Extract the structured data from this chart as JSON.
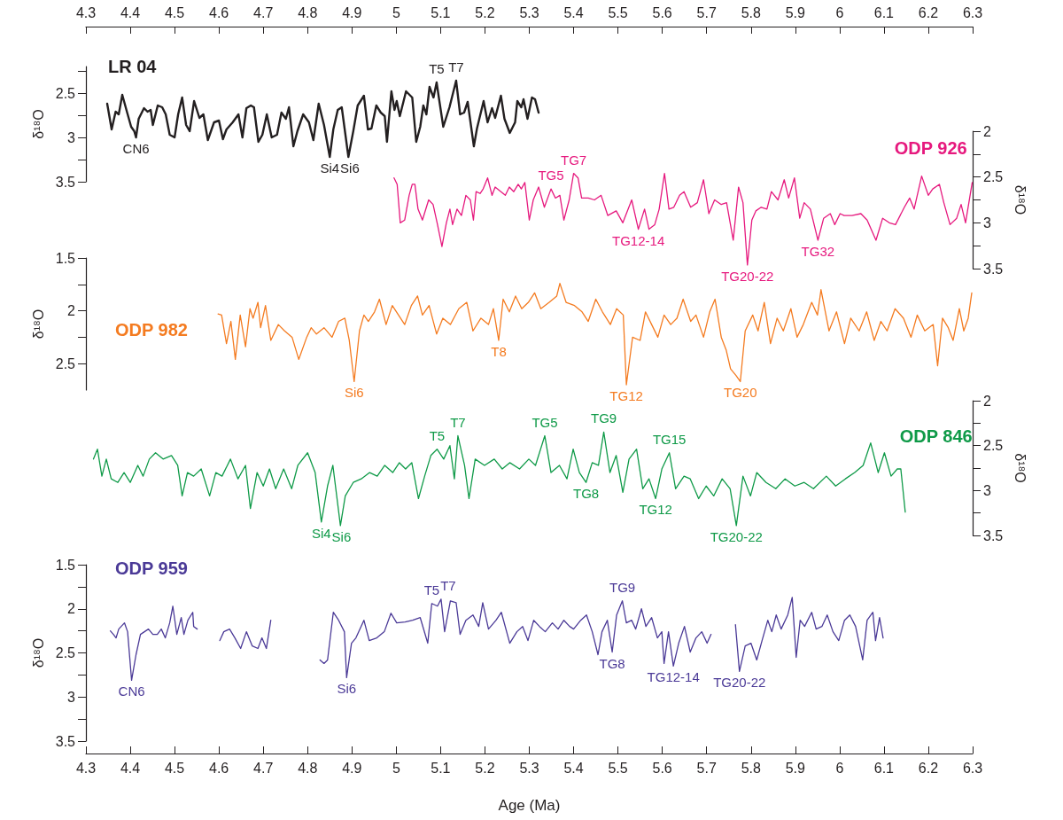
{
  "chart_data": [
    {
      "type": "line",
      "title": "LR 04",
      "ylabel": "δ¹⁸O",
      "xlim": [
        4.3,
        6.3
      ],
      "xticks": [
        4.3,
        4.4,
        4.5,
        4.6,
        4.7,
        4.8,
        4.9,
        5,
        5.1,
        5.2,
        5.3,
        5.4,
        5.5,
        5.6,
        5.7,
        5.8,
        5.9,
        6,
        6.1,
        6.2,
        6.3
      ],
      "ylim": [
        3.5,
        2.2
      ],
      "yticks": [
        {
          "value": 2.25,
          "label": null
        },
        2.5,
        {
          "value": 2.75,
          "label": null
        },
        3,
        {
          "value": 3.25,
          "label": null
        },
        3.5
      ],
      "series": [
        {
          "color": "#231f20",
          "x": [
            4.348,
            4.358,
            4.367,
            4.374,
            4.382,
            4.393,
            4.402,
            4.409,
            4.413,
            4.419,
            4.431,
            4.439,
            4.446,
            4.451,
            4.462,
            4.472,
            4.48,
            4.489,
            4.5,
            4.508,
            4.517,
            4.526,
            4.534,
            4.544,
            4.556,
            4.565,
            4.575,
            4.589,
            4.6,
            4.609,
            4.617,
            4.631,
            4.644,
            4.653,
            4.662,
            4.672,
            4.679,
            4.689,
            4.698,
            4.708,
            4.719,
            4.731,
            4.741,
            4.751,
            4.758,
            4.768,
            4.777,
            4.79,
            4.803,
            4.813,
            4.825,
            4.837,
            4.85,
            4.858,
            4.868,
            4.877,
            4.892,
            4.903,
            4.913,
            4.927,
            4.936,
            4.944,
            4.955,
            4.965,
            4.974,
            4.979,
            4.989,
            4.996,
            5.001,
            5.008,
            5.022,
            5.036,
            5.045,
            5.054,
            5.061,
            5.068,
            5.075,
            5.084,
            5.091,
            5.096,
            5.106,
            5.12,
            5.135,
            5.144,
            5.153,
            5.161,
            5.175,
            5.182,
            5.197,
            5.206,
            5.216,
            5.223,
            5.236,
            5.244,
            5.256,
            5.268,
            5.273,
            5.282,
            5.287,
            5.296,
            5.306,
            5.313,
            5.321
          ],
          "values": [
            2.62,
            2.91,
            2.71,
            2.74,
            2.52,
            2.72,
            2.88,
            2.93,
            3.0,
            2.79,
            2.67,
            2.71,
            2.69,
            2.86,
            2.64,
            2.66,
            2.74,
            2.97,
            3.0,
            2.74,
            2.55,
            2.86,
            2.93,
            2.59,
            2.78,
            2.74,
            3.03,
            2.83,
            2.81,
            3.02,
            2.91,
            2.83,
            2.74,
            3.0,
            2.67,
            2.64,
            2.66,
            3.05,
            2.97,
            2.74,
            3.0,
            2.97,
            2.72,
            2.79,
            2.66,
            3.1,
            2.93,
            2.74,
            2.83,
            3.03,
            2.62,
            2.86,
            3.22,
            2.91,
            2.69,
            2.66,
            3.22,
            2.93,
            2.64,
            2.53,
            2.91,
            2.9,
            2.64,
            2.72,
            2.76,
            3.05,
            2.48,
            2.69,
            2.59,
            2.76,
            2.48,
            2.55,
            3.05,
            2.88,
            2.64,
            2.74,
            2.43,
            2.55,
            2.38,
            2.55,
            2.88,
            2.66,
            2.36,
            2.74,
            2.72,
            2.6,
            3.1,
            2.9,
            2.59,
            2.83,
            2.67,
            2.78,
            2.53,
            2.79,
            2.95,
            2.83,
            2.59,
            2.66,
            2.57,
            2.79,
            2.55,
            2.57,
            2.72
          ]
        }
      ],
      "annotations": [
        {
          "text": "CN6",
          "x": 4.413,
          "y": 3.0
        },
        {
          "text": "Si4",
          "x": 4.85,
          "y": 3.22
        },
        {
          "text": "Si6",
          "x": 4.892,
          "y": 3.22
        },
        {
          "text": "T5",
          "x": 5.091,
          "y": 2.38
        },
        {
          "text": "T7",
          "x": 5.135,
          "y": 2.36
        }
      ]
    },
    {
      "type": "line",
      "title": "ODP 926",
      "ylabel": "δ¹⁸O",
      "xlim": [
        4.3,
        6.3
      ],
      "xticks": [
        4.3,
        4.4,
        4.5,
        4.6,
        4.7,
        4.8,
        4.9,
        5,
        5.1,
        5.2,
        5.3,
        5.4,
        5.5,
        5.6,
        5.7,
        5.8,
        5.9,
        6,
        6.1,
        6.2,
        6.3
      ],
      "tick_labels": "y",
      "ylim": [
        3.5,
        2
      ],
      "yticks": [
        2,
        {
          "value": 2.25,
          "label": null
        },
        2.5,
        {
          "value": 2.75,
          "label": null
        },
        3,
        {
          "value": 3.25,
          "label": null
        },
        3.5
      ],
      "series": [
        {
          "color": "#e6197e",
          "x": [
            4.995,
            5.002,
            5.009,
            5.019,
            5.029,
            5.036,
            5.042,
            5.049,
            5.059,
            5.073,
            5.083,
            5.093,
            5.103,
            5.113,
            5.121,
            5.127,
            5.137,
            5.147,
            5.157,
            5.167,
            5.174,
            5.18,
            5.189,
            5.196,
            5.206,
            5.216,
            5.223,
            5.236,
            5.246,
            5.255,
            5.265,
            5.275,
            5.282,
            5.29,
            5.3,
            5.309,
            5.321,
            5.334,
            5.349,
            5.359,
            5.369,
            5.378,
            5.39,
            5.4,
            5.41,
            5.418,
            5.433,
            5.447,
            5.462,
            5.477,
            5.496,
            5.511,
            5.531,
            5.546,
            5.56,
            5.57,
            5.583,
            5.593,
            5.605,
            5.615,
            5.626,
            5.639,
            5.649,
            5.664,
            5.679,
            5.693,
            5.705,
            5.718,
            5.733,
            5.745,
            5.76,
            5.772,
            5.782,
            5.792,
            5.802,
            5.811,
            5.823,
            5.836,
            5.846,
            5.861,
            5.875,
            5.885,
            5.898,
            5.91,
            5.92,
            5.934,
            5.951,
            5.964,
            5.979,
            5.989,
            6.001,
            6.01,
            6.028,
            6.048,
            6.062,
            6.082,
            6.097,
            6.112,
            6.126,
            6.146,
            6.158,
            6.168,
            6.185,
            6.2,
            6.21,
            6.225,
            6.235,
            6.249,
            6.264,
            6.274,
            6.284,
            6.299
          ],
          "values": [
            2.51,
            2.58,
            3.0,
            2.97,
            2.7,
            2.58,
            2.58,
            2.85,
            2.97,
            2.75,
            2.8,
            3.02,
            3.26,
            3.0,
            2.85,
            3.02,
            2.85,
            2.92,
            2.7,
            2.75,
            2.97,
            2.66,
            2.68,
            2.63,
            2.51,
            2.7,
            2.61,
            2.66,
            2.7,
            2.61,
            2.66,
            2.58,
            2.63,
            2.56,
            2.97,
            2.75,
            2.61,
            2.83,
            2.63,
            2.73,
            2.7,
            2.97,
            2.75,
            2.46,
            2.51,
            2.73,
            2.73,
            2.75,
            2.7,
            2.92,
            2.87,
            3.0,
            2.75,
            3.07,
            2.85,
            3.07,
            3.02,
            2.85,
            2.46,
            2.85,
            2.83,
            2.7,
            2.66,
            2.83,
            2.78,
            2.53,
            2.9,
            2.75,
            2.8,
            2.78,
            3.19,
            2.61,
            2.78,
            3.46,
            2.97,
            2.87,
            2.83,
            2.85,
            2.66,
            2.75,
            2.53,
            2.73,
            2.51,
            2.95,
            2.78,
            2.85,
            3.19,
            2.95,
            2.9,
            3.02,
            2.9,
            2.92,
            2.92,
            2.9,
            2.97,
            3.19,
            2.95,
            3.0,
            3.02,
            2.83,
            2.73,
            2.85,
            2.49,
            2.7,
            2.63,
            2.58,
            2.78,
            3.02,
            2.95,
            2.8,
            3.0,
            2.56
          ]
        }
      ],
      "annotations": [
        {
          "text": "TG5",
          "x": 5.349,
          "y": 2.63
        },
        {
          "text": "TG7",
          "x": 5.4,
          "y": 2.46
        },
        {
          "text": "TG12-14",
          "x": 5.546,
          "y": 3.07
        },
        {
          "text": "TG20-22",
          "x": 5.792,
          "y": 3.46
        },
        {
          "text": "TG32",
          "x": 5.951,
          "y": 3.19
        }
      ]
    },
    {
      "type": "line",
      "title": "ODP 982",
      "ylabel": "δ¹⁸O",
      "xlim": [
        4.3,
        6.3
      ],
      "xticks": [
        4.3,
        4.4,
        4.5,
        4.6,
        4.7,
        4.8,
        4.9,
        5,
        5.1,
        5.2,
        5.3,
        5.4,
        5.5,
        5.6,
        5.7,
        5.8,
        5.9,
        6,
        6.1,
        6.2,
        6.3
      ],
      "tick_labels": "y",
      "ylim": [
        2.75,
        1.5
      ],
      "yticks": [
        1.5,
        {
          "value": 1.75,
          "label": null
        },
        2,
        {
          "value": 2.25,
          "label": null
        },
        2.5
      ],
      "series": [
        {
          "color": "#f47b20",
          "x": [
            4.598,
            4.606,
            4.617,
            4.627,
            4.637,
            4.648,
            4.66,
            4.67,
            4.677,
            4.688,
            4.694,
            4.705,
            4.717,
            4.734,
            4.748,
            4.765,
            4.78,
            4.798,
            4.808,
            4.82,
            4.837,
            4.855,
            4.87,
            4.884,
            4.894,
            4.905,
            4.917,
            4.927,
            4.937,
            4.951,
            4.962,
            4.977,
            4.991,
            5.005,
            5.019,
            5.034,
            5.048,
            5.059,
            5.074,
            5.091,
            5.105,
            5.122,
            5.141,
            5.159,
            5.173,
            5.191,
            5.208,
            5.219,
            5.231,
            5.241,
            5.255,
            5.269,
            5.283,
            5.298,
            5.312,
            5.326,
            5.345,
            5.362,
            5.369,
            5.383,
            5.402,
            5.419,
            5.433,
            5.45,
            5.465,
            5.483,
            5.497,
            5.512,
            5.519,
            5.533,
            5.55,
            5.562,
            5.576,
            5.59,
            5.604,
            5.619,
            5.633,
            5.647,
            5.664,
            5.676,
            5.693,
            5.707,
            5.719,
            5.733,
            5.744,
            5.754,
            5.766,
            5.776,
            5.787,
            5.804,
            5.816,
            5.83,
            5.844,
            5.859,
            5.873,
            5.89,
            5.904,
            5.918,
            5.937,
            5.95,
            5.958,
            5.976,
            5.993,
            6.011,
            6.025,
            6.044,
            6.061,
            6.078,
            6.093,
            6.107,
            6.125,
            6.144,
            6.161,
            6.175,
            6.192,
            6.211,
            6.221,
            6.232,
            6.245,
            6.256,
            6.27,
            6.28,
            6.29,
            6.298
          ],
          "values": [
            2.03,
            2.04,
            2.31,
            2.1,
            2.46,
            2.04,
            2.34,
            1.98,
            2.07,
            1.92,
            2.16,
            1.95,
            2.28,
            2.13,
            2.19,
            2.25,
            2.46,
            2.25,
            2.16,
            2.22,
            2.16,
            2.25,
            2.1,
            2.07,
            2.28,
            2.67,
            2.19,
            2.04,
            2.1,
            2.01,
            1.89,
            2.13,
            1.95,
            2.04,
            2.13,
            1.95,
            1.86,
            2.04,
            1.95,
            2.22,
            2.07,
            2.13,
            1.98,
            1.92,
            2.19,
            2.07,
            2.13,
            1.98,
            2.28,
            1.89,
            2.01,
            1.86,
            1.98,
            1.92,
            1.83,
            1.98,
            1.92,
            1.86,
            1.74,
            1.92,
            1.95,
            2.01,
            2.1,
            1.89,
            2.01,
            2.13,
            1.98,
            2.04,
            2.7,
            2.25,
            2.28,
            2.01,
            2.13,
            2.25,
            2.04,
            2.13,
            2.07,
            1.89,
            2.1,
            2.04,
            2.25,
            2.01,
            1.89,
            2.25,
            2.37,
            2.55,
            2.61,
            2.67,
            2.19,
            2.04,
            2.19,
            1.92,
            2.31,
            2.07,
            2.19,
            1.98,
            2.25,
            2.13,
            1.92,
            2.04,
            1.8,
            2.19,
            2.01,
            2.31,
            2.07,
            2.19,
            2.01,
            2.28,
            2.1,
            2.19,
            1.98,
            2.07,
            2.25,
            2.04,
            2.19,
            2.13,
            2.52,
            2.07,
            2.16,
            2.28,
            1.98,
            2.19,
            2.07,
            1.83
          ]
        }
      ],
      "annotations": [
        {
          "text": "Si6",
          "x": 4.905,
          "y": 2.67
        },
        {
          "text": "T8",
          "x": 5.231,
          "y": 2.28
        },
        {
          "text": "TG12",
          "x": 5.519,
          "y": 2.7
        },
        {
          "text": "TG20",
          "x": 5.776,
          "y": 2.67
        }
      ]
    },
    {
      "type": "line",
      "title": "ODP 846",
      "ylabel": "δ¹⁸O",
      "xlim": [
        4.3,
        6.3
      ],
      "xticks": [
        4.3,
        4.4,
        4.5,
        4.6,
        4.7,
        4.8,
        4.9,
        5,
        5.1,
        5.2,
        5.3,
        5.4,
        5.5,
        5.6,
        5.7,
        5.8,
        5.9,
        6,
        6.1,
        6.2,
        6.3
      ],
      "tick_labels": "y",
      "ylim": [
        3.5,
        2
      ],
      "yticks": [
        2,
        {
          "value": 2.25,
          "label": null
        },
        2.5,
        {
          "value": 2.75,
          "label": null
        },
        3,
        {
          "value": 3.25,
          "label": null
        },
        3.5
      ],
      "series": [
        {
          "color": "#0f9a48",
          "x": [
            4.317,
            4.326,
            4.336,
            4.346,
            4.357,
            4.372,
            4.386,
            4.4,
            4.417,
            4.429,
            4.443,
            4.457,
            4.474,
            4.493,
            4.507,
            4.517,
            4.529,
            4.543,
            4.56,
            4.579,
            4.593,
            4.607,
            4.626,
            4.643,
            4.66,
            4.671,
            4.686,
            4.7,
            4.714,
            4.728,
            4.746,
            4.764,
            4.778,
            4.8,
            4.817,
            4.831,
            4.845,
            4.857,
            4.874,
            4.885,
            4.903,
            4.921,
            4.94,
            4.957,
            4.974,
            4.992,
            5.007,
            5.021,
            5.035,
            5.05,
            5.064,
            5.078,
            5.092,
            5.107,
            5.121,
            5.131,
            5.139,
            5.154,
            5.164,
            5.178,
            5.199,
            5.221,
            5.239,
            5.256,
            5.278,
            5.299,
            5.314,
            5.335,
            5.349,
            5.368,
            5.385,
            5.399,
            5.413,
            5.428,
            5.442,
            5.456,
            5.468,
            5.482,
            5.496,
            5.511,
            5.525,
            5.542,
            5.556,
            5.57,
            5.585,
            5.599,
            5.616,
            5.63,
            5.649,
            5.663,
            5.682,
            5.699,
            5.716,
            5.735,
            5.753,
            5.767,
            5.782,
            5.799,
            5.813,
            5.834,
            5.856,
            5.877,
            5.899,
            5.92,
            5.941,
            5.97,
            5.991,
            6.013,
            6.034,
            6.053,
            6.07,
            6.087,
            6.101,
            6.116,
            6.13,
            6.138,
            6.148
          ],
          "values": [
            2.65,
            2.54,
            2.84,
            2.65,
            2.87,
            2.91,
            2.8,
            2.91,
            2.72,
            2.84,
            2.65,
            2.58,
            2.65,
            2.61,
            2.72,
            3.06,
            2.8,
            2.84,
            2.76,
            3.06,
            2.8,
            2.84,
            2.65,
            2.87,
            2.72,
            3.2,
            2.8,
            2.95,
            2.76,
            2.98,
            2.76,
            2.98,
            2.72,
            2.58,
            2.8,
            3.35,
            2.95,
            2.72,
            3.39,
            3.06,
            2.91,
            2.87,
            2.8,
            2.84,
            2.72,
            2.8,
            2.69,
            2.76,
            2.69,
            3.09,
            2.84,
            2.61,
            2.54,
            2.65,
            2.5,
            2.87,
            2.39,
            2.72,
            3.09,
            2.65,
            2.72,
            2.65,
            2.76,
            2.69,
            2.76,
            2.65,
            2.72,
            2.39,
            2.8,
            2.72,
            2.87,
            2.54,
            2.8,
            2.91,
            2.69,
            2.72,
            2.35,
            2.8,
            2.61,
            3.02,
            2.65,
            2.54,
            2.98,
            2.87,
            3.09,
            2.76,
            2.58,
            2.98,
            2.84,
            2.87,
            3.09,
            2.95,
            3.06,
            2.87,
            2.98,
            3.39,
            2.84,
            3.06,
            2.8,
            2.91,
            2.98,
            2.87,
            2.95,
            2.91,
            2.98,
            2.84,
            2.95,
            2.87,
            2.8,
            2.72,
            2.47,
            2.8,
            2.58,
            2.84,
            2.76,
            2.76,
            3.24
          ]
        }
      ],
      "annotations": [
        {
          "text": "T5",
          "x": 5.092,
          "y": 2.54
        },
        {
          "text": "T7",
          "x": 5.139,
          "y": 2.39
        },
        {
          "text": "TG5",
          "x": 5.335,
          "y": 2.39
        },
        {
          "text": "TG9",
          "x": 5.468,
          "y": 2.35
        },
        {
          "text": "TG15",
          "x": 5.616,
          "y": 2.58
        },
        {
          "text": "Si4",
          "x": 4.831,
          "y": 3.35
        },
        {
          "text": "Si6",
          "x": 4.874,
          "y": 3.39
        },
        {
          "text": "TG8",
          "x": 5.428,
          "y": 2.91
        },
        {
          "text": "TG12",
          "x": 5.585,
          "y": 3.09
        },
        {
          "text": "TG20-22",
          "x": 5.767,
          "y": 3.39
        }
      ]
    },
    {
      "type": "line",
      "title": "ODP 959",
      "xlabel": "Age (Ma)",
      "ylabel": "δ¹⁸O",
      "xlim": [
        4.3,
        6.3
      ],
      "xticks": [
        4.3,
        4.4,
        4.5,
        4.6,
        4.7,
        4.8,
        4.9,
        5,
        5.1,
        5.2,
        5.3,
        5.4,
        5.5,
        5.6,
        5.7,
        5.8,
        5.9,
        6,
        6.1,
        6.2,
        6.3
      ],
      "ylim": [
        3.5,
        1.5
      ],
      "yticks": [
        1.5,
        {
          "value": 1.75,
          "label": null
        },
        2,
        {
          "value": 2.25,
          "label": null
        },
        2.5,
        {
          "value": 2.75,
          "label": null
        },
        3,
        {
          "value": 3.25,
          "label": null
        },
        3.5
      ],
      "series": [
        {
          "color": "#4b3a97",
          "x": [
            4.355,
            4.362,
            4.368,
            4.374,
            4.387,
            4.394,
            4.403,
            4.413,
            4.423,
            4.432,
            4.441,
            4.451,
            4.461,
            4.47,
            4.479,
            4.489,
            4.496,
            4.505,
            4.515,
            4.521,
            4.53,
            4.541,
            4.543,
            4.551,
            4.575,
            4.602,
            4.611,
            4.624,
            4.636,
            4.649,
            4.662,
            4.675,
            4.688,
            4.697,
            4.707,
            4.717,
            4.77,
            4.828,
            4.837,
            4.845,
            4.858,
            4.87,
            4.883,
            4.888,
            4.899,
            4.909,
            4.927,
            4.939,
            4.956,
            4.973,
            4.988,
            5.001,
            5.02,
            5.037,
            5.054,
            5.071,
            5.08,
            5.093,
            5.101,
            5.109,
            5.122,
            5.135,
            5.144,
            5.157,
            5.173,
            5.186,
            5.195,
            5.208,
            5.225,
            5.237,
            5.256,
            5.272,
            5.285,
            5.297,
            5.31,
            5.323,
            5.336,
            5.352,
            5.365,
            5.378,
            5.391,
            5.4,
            5.416,
            5.429,
            5.442,
            5.455,
            5.464,
            5.476,
            5.487,
            5.497,
            5.51,
            5.519,
            5.531,
            5.54,
            5.553,
            5.563,
            5.576,
            5.589,
            5.599,
            5.604,
            5.614,
            5.625,
            5.637,
            5.65,
            5.663,
            5.676,
            5.689,
            5.701,
            5.71,
            5.74,
            5.765,
            5.774,
            5.787,
            5.8,
            5.813,
            5.825,
            5.838,
            5.847,
            5.857,
            5.868,
            5.883,
            5.893,
            5.902,
            5.911,
            5.921,
            5.937,
            5.947,
            5.96,
            5.972,
            5.985,
            5.998,
            6.011,
            6.023,
            6.036,
            6.052,
            6.062,
            6.075,
            6.081,
            6.09,
            6.098
          ],
          "values": [
            2.25,
            2.29,
            2.33,
            2.23,
            2.16,
            2.26,
            2.81,
            2.52,
            2.29,
            2.26,
            2.23,
            2.29,
            2.29,
            2.23,
            2.33,
            2.16,
            1.97,
            2.29,
            2.1,
            2.29,
            2.13,
            2.04,
            2.2,
            2.23,
            null,
            2.36,
            2.26,
            2.23,
            2.33,
            2.45,
            2.26,
            2.42,
            2.45,
            2.33,
            2.45,
            2.13,
            null,
            2.58,
            2.62,
            2.58,
            2.04,
            2.13,
            2.26,
            2.78,
            2.39,
            2.33,
            2.13,
            2.36,
            2.33,
            2.26,
            2.05,
            2.16,
            2.15,
            2.13,
            2.1,
            2.39,
            1.94,
            1.97,
            1.89,
            2.26,
            1.91,
            1.93,
            2.29,
            2.13,
            2.07,
            2.2,
            1.93,
            2.23,
            2.13,
            2.04,
            2.39,
            2.26,
            2.2,
            2.36,
            2.13,
            2.2,
            2.26,
            2.16,
            2.23,
            2.13,
            2.2,
            2.23,
            2.13,
            2.07,
            2.26,
            2.52,
            2.26,
            2.13,
            2.49,
            2.07,
            1.91,
            2.16,
            2.13,
            2.23,
            2.0,
            2.2,
            2.1,
            2.33,
            2.26,
            2.62,
            2.26,
            2.65,
            2.39,
            2.2,
            2.49,
            2.33,
            2.26,
            2.39,
            2.29,
            null,
            2.18,
            2.71,
            2.42,
            2.39,
            2.58,
            2.36,
            2.13,
            2.26,
            2.07,
            2.23,
            2.07,
            1.87,
            2.55,
            2.13,
            2.2,
            2.04,
            2.23,
            2.2,
            2.07,
            2.26,
            2.36,
            2.13,
            2.07,
            2.2,
            2.58,
            2.13,
            2.04,
            2.36,
            2.1,
            2.33
          ]
        }
      ],
      "annotations": [
        {
          "text": "CN6",
          "x": 4.403,
          "y": 2.81
        },
        {
          "text": "Si6",
          "x": 4.888,
          "y": 2.78
        },
        {
          "text": "T5",
          "x": 5.08,
          "y": 1.94
        },
        {
          "text": "T7",
          "x": 5.101,
          "y": 1.89
        },
        {
          "text": "TG9",
          "x": 5.51,
          "y": 1.91
        },
        {
          "text": "TG8",
          "x": 5.487,
          "y": 2.49
        },
        {
          "text": "TG12-14",
          "x": 5.625,
          "y": 2.65
        },
        {
          "text": "TG20-22",
          "x": 5.774,
          "y": 2.71
        }
      ]
    }
  ]
}
